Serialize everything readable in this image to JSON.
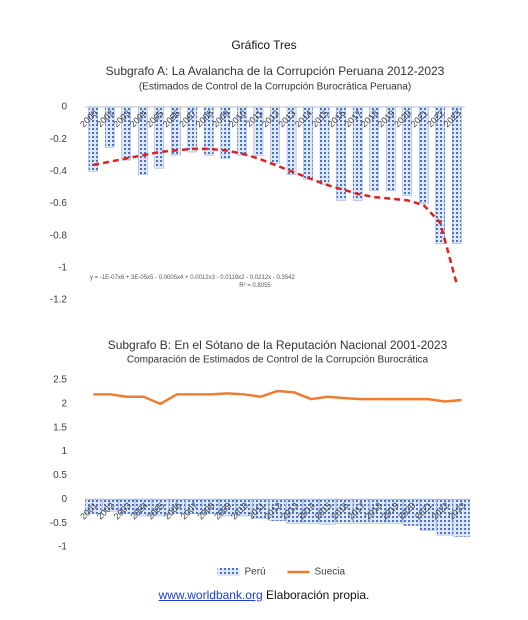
{
  "title": "Gráfico Tres",
  "chart_data": [
    {
      "type": "bar",
      "title": "Subgrafo A: La Avalancha de la Corrupción Peruana 2012-2023",
      "subtitle": "(Estimados de Control de la Corrupción Burocrática Peruana)",
      "categories": [
        "2000",
        "2002",
        "2003",
        "2004",
        "2005",
        "2006",
        "2007",
        "2008",
        "2009",
        "2010",
        "2011",
        "2012",
        "2013",
        "2014",
        "2015",
        "2016",
        "2017",
        "2018",
        "2019",
        "2020",
        "2021",
        "2022",
        "2023"
      ],
      "values": [
        -0.4,
        -0.25,
        -0.33,
        -0.42,
        -0.38,
        -0.3,
        -0.28,
        -0.3,
        -0.32,
        -0.3,
        -0.3,
        -0.35,
        -0.42,
        -0.45,
        -0.48,
        -0.58,
        -0.58,
        -0.52,
        -0.52,
        -0.55,
        -0.6,
        -0.85,
        -0.85
      ],
      "color": "#4a72c4",
      "ylim": [
        -1.2,
        0
      ],
      "yticks": [
        0,
        -0.2,
        -0.4,
        -0.6,
        -0.8,
        -1,
        -1.2
      ],
      "trendline": {
        "color": "#e02020",
        "values": [
          -0.36,
          -0.34,
          -0.32,
          -0.3,
          -0.28,
          -0.27,
          -0.26,
          -0.26,
          -0.27,
          -0.29,
          -0.32,
          -0.36,
          -0.4,
          -0.44,
          -0.48,
          -0.51,
          -0.54,
          -0.56,
          -0.57,
          -0.58,
          -0.61,
          -0.72,
          -1.1
        ],
        "equation": "y = -1E-07x6 + 3E-05x5 - 0.0005x4 + 0.0012x3 - 0.0119x2 - 0.0212x - 0.3542",
        "r2": "R² = 0.8055"
      }
    },
    {
      "type": "bar",
      "title": "Subgrafo B: En el Sótano de la Reputación Nacional 2001-2023",
      "subtitle": "Comparación de Estimados de Control de la Corrupción Burocrática",
      "categories": [
        "2001",
        "2002",
        "2003",
        "2004",
        "2005",
        "2006",
        "2007",
        "2008",
        "2009",
        "2010",
        "2011",
        "2012",
        "2013",
        "2014",
        "2015",
        "2016",
        "2017",
        "2018",
        "2019",
        "2020",
        "2021",
        "2022",
        "2023"
      ],
      "series": [
        {
          "name": "Perú",
          "type": "bar",
          "color": "#4a72c4",
          "values": [
            -0.3,
            -0.25,
            -0.3,
            -0.35,
            -0.35,
            -0.3,
            -0.3,
            -0.3,
            -0.35,
            -0.35,
            -0.4,
            -0.45,
            -0.5,
            -0.5,
            -0.52,
            -0.5,
            -0.5,
            -0.5,
            -0.5,
            -0.55,
            -0.65,
            -0.75,
            -0.78
          ]
        },
        {
          "name": "Suecia",
          "type": "line",
          "color": "#ed7d31",
          "values": [
            2.2,
            2.2,
            2.15,
            2.15,
            2.0,
            2.2,
            2.2,
            2.2,
            2.22,
            2.2,
            2.15,
            2.27,
            2.24,
            2.1,
            2.15,
            2.12,
            2.1,
            2.1,
            2.1,
            2.1,
            2.1,
            2.05,
            2.08
          ]
        }
      ],
      "ylim": [
        -1,
        2.5
      ],
      "yticks": [
        2.5,
        2,
        1.5,
        1,
        0.5,
        0,
        -0.5,
        -1
      ],
      "legend": "bottom"
    }
  ],
  "footer": {
    "link": "www.worldbank.org",
    "text": "Elaboración propia."
  }
}
